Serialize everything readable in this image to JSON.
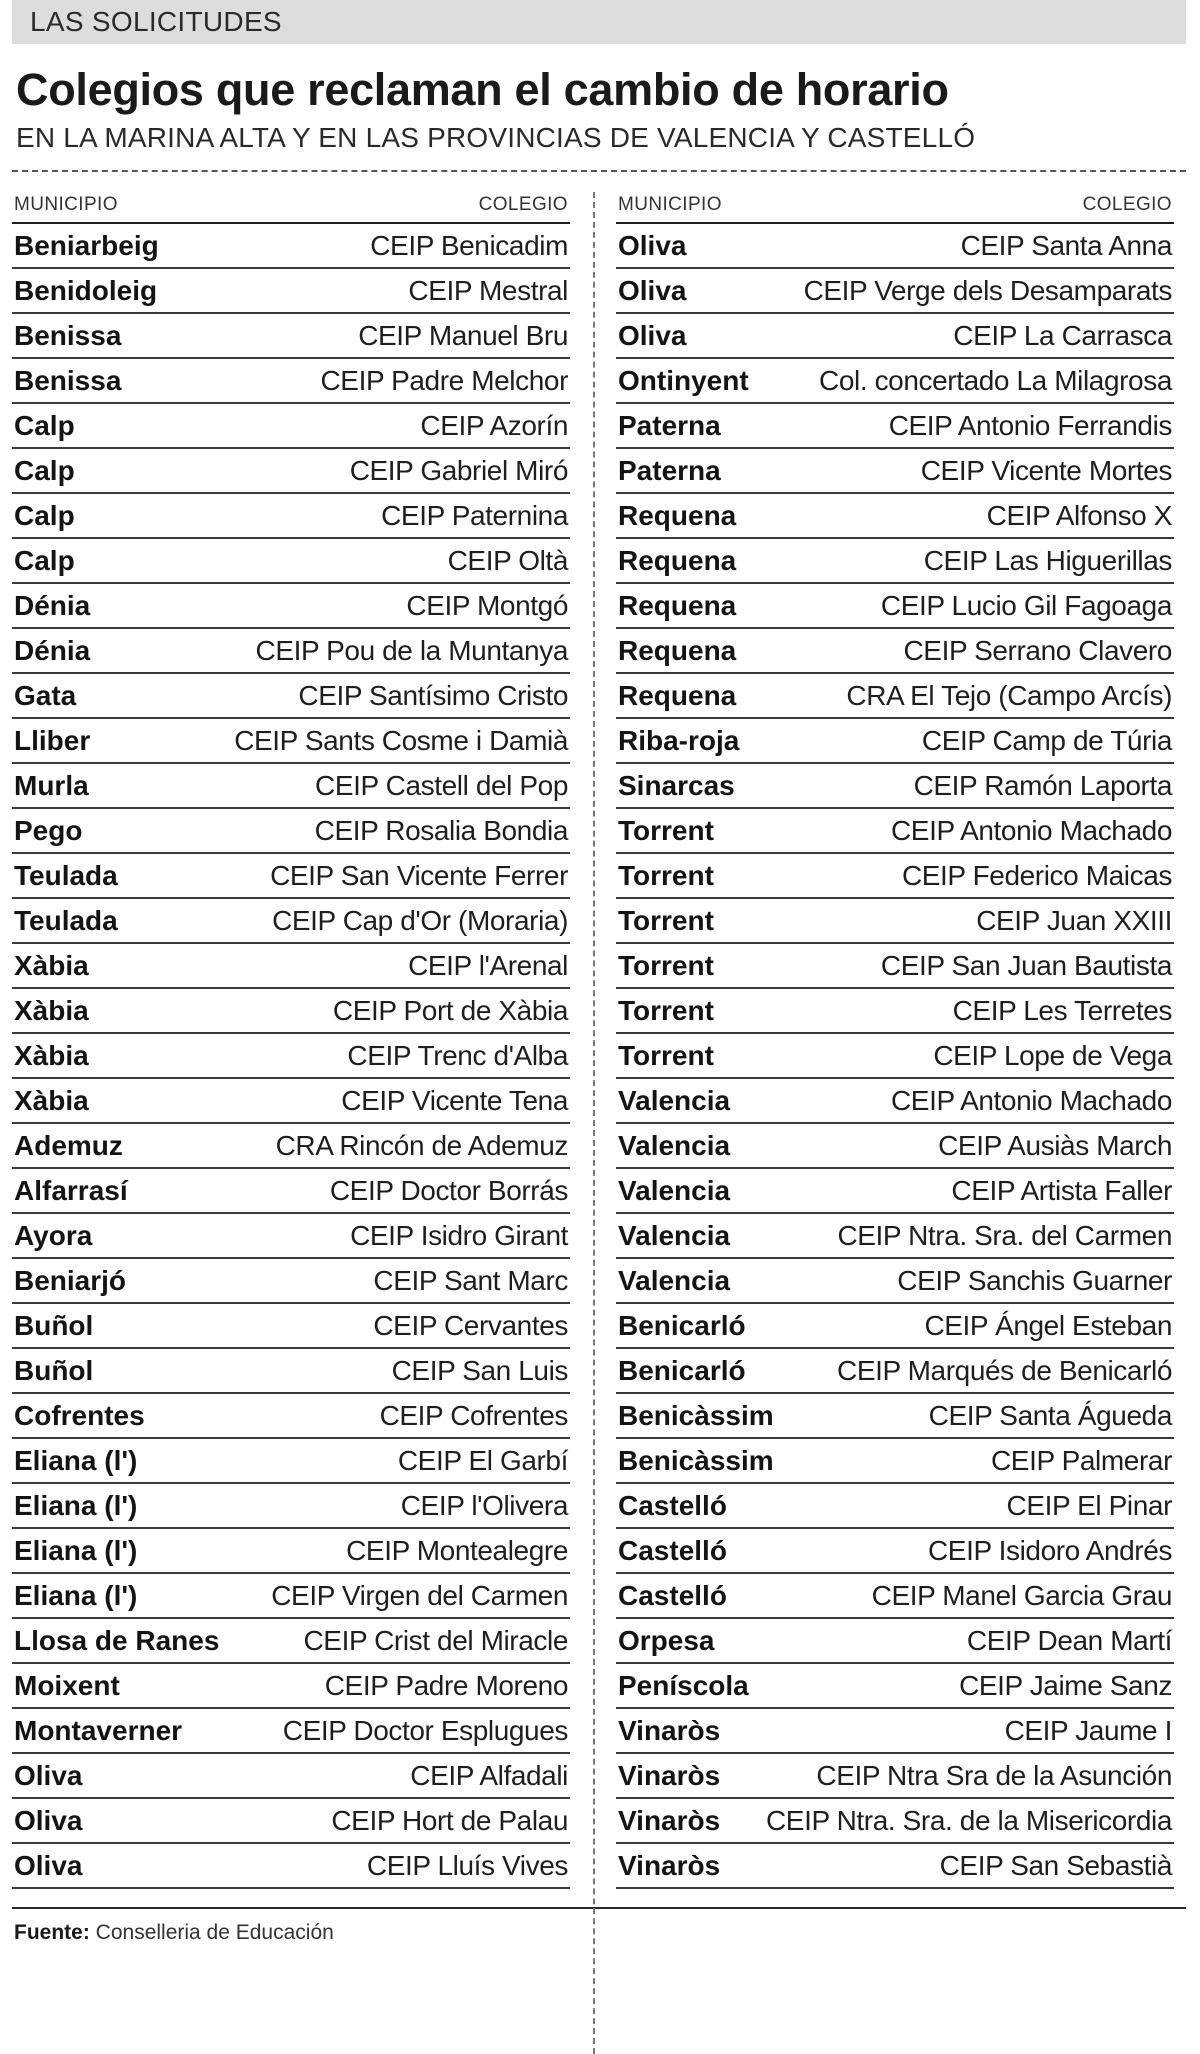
{
  "section_label": "LAS SOLICITUDES",
  "title": "Colegios que reclaman el cambio de horario",
  "subtitle": "EN LA MARINA ALTA Y EN LAS PROVINCIAS DE VALENCIA Y CASTELLÓ",
  "columns": [
    {
      "header_municipio": "MUNICIPIO",
      "header_colegio": "COLEGIO",
      "rows": [
        {
          "municipio": "Beniarbeig",
          "colegio": "CEIP Benicadim"
        },
        {
          "municipio": "Benidoleig",
          "colegio": "CEIP Mestral"
        },
        {
          "municipio": "Benissa",
          "colegio": "CEIP Manuel Bru"
        },
        {
          "municipio": "Benissa",
          "colegio": "CEIP Padre Melchor"
        },
        {
          "municipio": "Calp",
          "colegio": "CEIP Azorín"
        },
        {
          "municipio": "Calp",
          "colegio": "CEIP Gabriel Miró"
        },
        {
          "municipio": "Calp",
          "colegio": "CEIP Paternina"
        },
        {
          "municipio": "Calp",
          "colegio": "CEIP Oltà"
        },
        {
          "municipio": "Dénia",
          "colegio": "CEIP Montgó"
        },
        {
          "municipio": "Dénia",
          "colegio": "CEIP Pou de la Muntanya"
        },
        {
          "municipio": "Gata",
          "colegio": "CEIP Santísimo Cristo"
        },
        {
          "municipio": "Lliber",
          "colegio": "CEIP Sants Cosme i Damià"
        },
        {
          "municipio": "Murla",
          "colegio": "CEIP Castell del Pop"
        },
        {
          "municipio": "Pego",
          "colegio": "CEIP Rosalia Bondia"
        },
        {
          "municipio": "Teulada",
          "colegio": "CEIP San Vicente Ferrer"
        },
        {
          "municipio": "Teulada",
          "colegio": "CEIP Cap d'Or (Moraria)"
        },
        {
          "municipio": "Xàbia",
          "colegio": "CEIP l'Arenal"
        },
        {
          "municipio": "Xàbia",
          "colegio": "CEIP Port de Xàbia"
        },
        {
          "municipio": "Xàbia",
          "colegio": "CEIP Trenc d'Alba"
        },
        {
          "municipio": "Xàbia",
          "colegio": "CEIP Vicente Tena"
        },
        {
          "municipio": "Ademuz",
          "colegio": "CRA Rincón de Ademuz"
        },
        {
          "municipio": "Alfarrasí",
          "colegio": "CEIP Doctor Borrás"
        },
        {
          "municipio": "Ayora",
          "colegio": "CEIP Isidro Girant"
        },
        {
          "municipio": "Beniarjó",
          "colegio": "CEIP Sant Marc"
        },
        {
          "municipio": "Buñol",
          "colegio": "CEIP Cervantes"
        },
        {
          "municipio": "Buñol",
          "colegio": "CEIP San Luis"
        },
        {
          "municipio": "Cofrentes",
          "colegio": "CEIP Cofrentes"
        },
        {
          "municipio": "Eliana (l')",
          "colegio": "CEIP El Garbí"
        },
        {
          "municipio": "Eliana (l')",
          "colegio": "CEIP l'Olivera"
        },
        {
          "municipio": "Eliana (l')",
          "colegio": "CEIP Montealegre"
        },
        {
          "municipio": "Eliana (l')",
          "colegio": "CEIP Virgen del Carmen"
        },
        {
          "municipio": "Llosa de Ranes",
          "colegio": "CEIP Crist del Miracle"
        },
        {
          "municipio": "Moixent",
          "colegio": "CEIP Padre Moreno"
        },
        {
          "municipio": "Montaverner",
          "colegio": "CEIP Doctor Esplugues"
        },
        {
          "municipio": "Oliva",
          "colegio": "CEIP Alfadali"
        },
        {
          "municipio": "Oliva",
          "colegio": "CEIP Hort de Palau"
        },
        {
          "municipio": "Oliva",
          "colegio": "CEIP Lluís Vives"
        }
      ]
    },
    {
      "header_municipio": "MUNICIPIO",
      "header_colegio": "COLEGIO",
      "rows": [
        {
          "municipio": "Oliva",
          "colegio": "CEIP Santa Anna"
        },
        {
          "municipio": "Oliva",
          "colegio": "CEIP Verge dels Desamparats"
        },
        {
          "municipio": "Oliva",
          "colegio": "CEIP La Carrasca"
        },
        {
          "municipio": "Ontinyent",
          "colegio": "Col. concertado La Milagrosa"
        },
        {
          "municipio": "Paterna",
          "colegio": "CEIP Antonio Ferrandis"
        },
        {
          "municipio": "Paterna",
          "colegio": "CEIP Vicente Mortes"
        },
        {
          "municipio": "Requena",
          "colegio": "CEIP Alfonso X"
        },
        {
          "municipio": "Requena",
          "colegio": "CEIP Las Higuerillas"
        },
        {
          "municipio": "Requena",
          "colegio": "CEIP Lucio Gil Fagoaga"
        },
        {
          "municipio": "Requena",
          "colegio": "CEIP Serrano Clavero"
        },
        {
          "municipio": "Requena",
          "colegio": "CRA El Tejo (Campo Arcís)"
        },
        {
          "municipio": "Riba-roja",
          "colegio": "CEIP Camp de Túria"
        },
        {
          "municipio": "Sinarcas",
          "colegio": "CEIP Ramón Laporta"
        },
        {
          "municipio": "Torrent",
          "colegio": "CEIP Antonio Machado"
        },
        {
          "municipio": "Torrent",
          "colegio": "CEIP Federico Maicas"
        },
        {
          "municipio": "Torrent",
          "colegio": "CEIP Juan XXIII"
        },
        {
          "municipio": "Torrent",
          "colegio": "CEIP San Juan Bautista"
        },
        {
          "municipio": "Torrent",
          "colegio": "CEIP Les Terretes"
        },
        {
          "municipio": "Torrent",
          "colegio": "CEIP Lope de Vega"
        },
        {
          "municipio": "Valencia",
          "colegio": "CEIP Antonio Machado"
        },
        {
          "municipio": "Valencia",
          "colegio": "CEIP Ausiàs March"
        },
        {
          "municipio": "Valencia",
          "colegio": "CEIP Artista Faller"
        },
        {
          "municipio": "Valencia",
          "colegio": "CEIP Ntra. Sra. del Carmen"
        },
        {
          "municipio": "Valencia",
          "colegio": "CEIP Sanchis Guarner"
        },
        {
          "municipio": "Benicarló",
          "colegio": "CEIP Ángel Esteban"
        },
        {
          "municipio": "Benicarló",
          "colegio": "CEIP Marqués de Benicarló"
        },
        {
          "municipio": "Benicàssim",
          "colegio": "CEIP Santa Águeda"
        },
        {
          "municipio": "Benicàssim",
          "colegio": "CEIP Palmerar"
        },
        {
          "municipio": "Castelló",
          "colegio": "CEIP El Pinar"
        },
        {
          "municipio": "Castelló",
          "colegio": "CEIP Isidoro Andrés"
        },
        {
          "municipio": "Castelló",
          "colegio": "CEIP Manel Garcia Grau"
        },
        {
          "municipio": "Orpesa",
          "colegio": "CEIP Dean Martí"
        },
        {
          "municipio": "Peníscola",
          "colegio": "CEIP Jaime Sanz"
        },
        {
          "municipio": "Vinaròs",
          "colegio": "CEIP Jaume I"
        },
        {
          "municipio": "Vinaròs",
          "colegio": "CEIP Ntra Sra de la Asunción"
        },
        {
          "municipio": "Vinaròs",
          "colegio": "CEIP Ntra. Sra. de la Misericordia"
        },
        {
          "municipio": "Vinaròs",
          "colegio": "CEIP San Sebastià"
        }
      ]
    }
  ],
  "source_label": "Fuente:",
  "source_text": "Conselleria de Educación"
}
